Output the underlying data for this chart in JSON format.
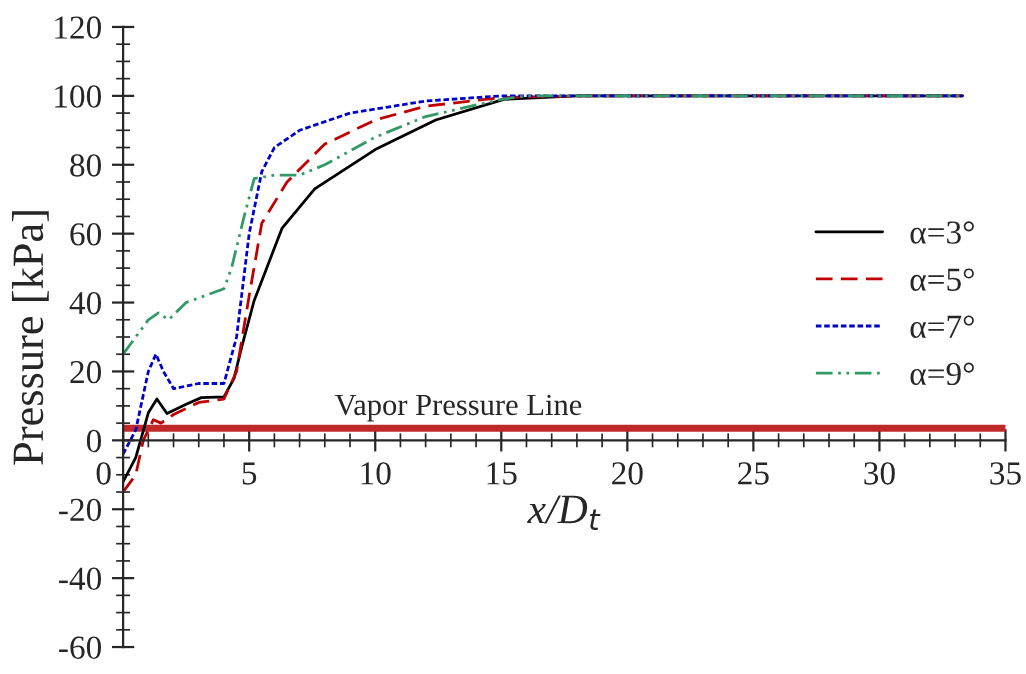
{
  "chart_data": {
    "type": "line",
    "xlabel": "x/D$_{t}$",
    "ylabel": "Pressure [kPa]",
    "xlim": [
      0,
      35
    ],
    "xticks": [
      0,
      5,
      10,
      15,
      20,
      25,
      30,
      35
    ],
    "ylim": [
      -60,
      120
    ],
    "yticks": [
      -60,
      -40,
      -20,
      0,
      20,
      40,
      60,
      80,
      100,
      120
    ],
    "grid": false,
    "legend": "right",
    "marker": "none",
    "ref_lines": [
      {
        "axis": "y",
        "value": 3.5,
        "label": "Vapor Pressure Line",
        "color": "#c0282a",
        "line_style": "solid"
      }
    ],
    "series": [
      {
        "name": "α=3°",
        "color": "#000000",
        "line_style": "solid",
        "x": [
          0,
          0.5,
          1,
          1.34,
          1.74,
          2.5,
          3.1,
          4.0,
          4.4,
          4.7,
          5.2,
          6.3,
          7.6,
          10,
          12.4,
          15.1,
          18,
          25,
          33.3
        ],
        "values": [
          -12,
          -5,
          8,
          12,
          7.8,
          10.5,
          12.4,
          12.6,
          18,
          27,
          40.6,
          61.5,
          73,
          84.4,
          93,
          99,
          100,
          100,
          100
        ]
      },
      {
        "name": "α=5°",
        "color": "#c00000",
        "line_style": "dashed",
        "x": [
          0,
          0.5,
          0.8,
          1.2,
          1.5,
          2,
          3,
          4,
          4.5,
          5,
          5.5,
          6.5,
          8,
          10,
          12,
          15,
          18,
          25,
          33.3
        ],
        "values": [
          -15,
          -10,
          0,
          6,
          5,
          7.5,
          11,
          12,
          20,
          42,
          63,
          75,
          86,
          93,
          97,
          99.5,
          100,
          100,
          100
        ]
      },
      {
        "name": "α=7°",
        "color": "#0000cc",
        "line_style": "dotted",
        "x": [
          0,
          0.5,
          1,
          1.3,
          1.6,
          2,
          3,
          4,
          4.5,
          5,
          5.5,
          6,
          7,
          9,
          12,
          15,
          18,
          25,
          33.3
        ],
        "values": [
          -4,
          3,
          20,
          25,
          20,
          15,
          16.5,
          16.5,
          30,
          60,
          78,
          85,
          90,
          95,
          98.5,
          100,
          100,
          100,
          100
        ]
      },
      {
        "name": "α=9°",
        "color": "#339966",
        "line_style": "dashdot",
        "x": [
          0,
          0.5,
          1,
          1.4,
          1.8,
          2.5,
          4,
          4.3,
          4.8,
          5.2,
          6,
          7,
          8,
          10,
          12,
          15,
          16,
          25,
          33.3
        ],
        "values": [
          25,
          30,
          35,
          37,
          35,
          40,
          44,
          50,
          65,
          76,
          77,
          77,
          80,
          88,
          94,
          99,
          100,
          100,
          100
        ]
      }
    ]
  }
}
